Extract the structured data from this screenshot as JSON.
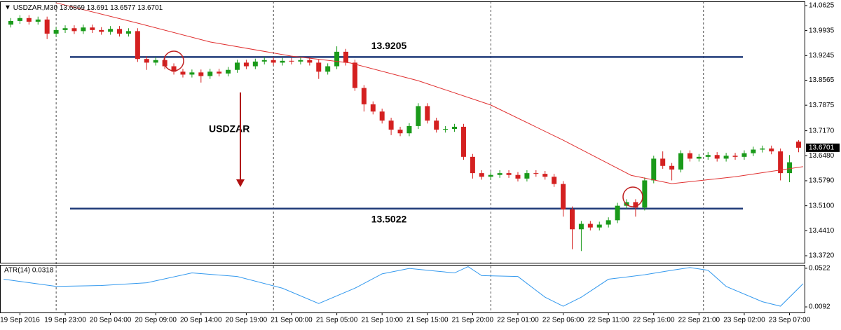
{
  "chart_data": {
    "type": "candlestick",
    "symbol": "USDZAR,M30",
    "annotation": "USDZAR",
    "up_color": "#1a9a1a",
    "down_color": "#d42020",
    "xlim": [
      -7.2,
      81.66
    ],
    "xticks": [
      {
        "value": -5,
        "label": "19 Sep 2016"
      },
      {
        "value": 0,
        "label": "19 Sep 23:00"
      },
      {
        "value": 5,
        "label": "20 Sep 04:00"
      },
      {
        "value": 10,
        "label": "20 Sep 09:00"
      },
      {
        "value": 15,
        "label": "20 Sep 14:00"
      },
      {
        "value": 20,
        "label": "20 Sep 19:00"
      },
      {
        "value": 25,
        "label": "21 Sep 00:00"
      },
      {
        "value": 30,
        "label": "21 Sep 05:00"
      },
      {
        "value": 35,
        "label": "21 Sep 10:00"
      },
      {
        "value": 40,
        "label": "21 Sep 15:00"
      },
      {
        "value": 45,
        "label": "21 Sep 20:00"
      },
      {
        "value": 50,
        "label": "22 Sep 01:00"
      },
      {
        "value": 55,
        "label": "22 Sep 06:00"
      },
      {
        "value": 60,
        "label": "22 Sep 11:00"
      },
      {
        "value": 65,
        "label": "22 Sep 16:00"
      },
      {
        "value": 70,
        "label": "22 Sep 21:00"
      },
      {
        "value": 75,
        "label": "23 Sep 02:00"
      },
      {
        "value": 80,
        "label": "23 Sep 07:00"
      }
    ],
    "separators": [
      -1,
      23,
      47,
      70.5
    ],
    "ylim": [
      13.3527,
      14.074
    ],
    "yticks": [
      14.0625,
      13.9935,
      13.9245,
      13.8565,
      13.7875,
      {
        "value": 13.717,
        "label": "13.7170"
      },
      {
        "value": 13.648,
        "label": "13.6480"
      },
      {
        "value": 13.579,
        "label": "13.5790"
      },
      {
        "value": 13.51,
        "label": "13.5100"
      },
      {
        "value": 13.441,
        "label": "13.4410"
      },
      {
        "value": 13.372,
        "label": "13.3720"
      }
    ],
    "x": [
      -6,
      -5,
      -4,
      -3,
      -2,
      -1,
      0,
      1,
      2,
      3,
      4,
      5,
      6,
      7,
      8,
      9,
      10,
      11,
      12,
      13,
      14,
      15,
      16,
      17,
      18,
      19,
      20,
      21,
      22,
      23,
      24,
      25,
      26,
      27,
      28,
      29,
      30,
      31,
      32,
      33,
      34,
      35,
      36,
      37,
      38,
      39,
      40,
      41,
      42,
      43,
      44,
      45,
      46,
      47,
      48,
      49,
      50,
      51,
      52,
      53,
      54,
      55,
      56,
      57,
      58,
      59,
      60,
      61,
      62,
      63,
      64,
      65,
      66,
      67,
      68,
      69,
      70,
      71,
      72,
      73,
      74,
      75,
      76,
      77,
      78,
      79,
      80,
      81
    ],
    "open": [
      14.01,
      14.02,
      14.028,
      14.018,
      14.024,
      13.985,
      13.995,
      14.0,
      13.992,
      14.002,
      13.995,
      13.99,
      13.998,
      13.985,
      13.992,
      13.915,
      13.905,
      13.912,
      13.895,
      13.88,
      13.872,
      13.878,
      13.868,
      13.88,
      13.875,
      13.885,
      13.905,
      13.895,
      13.908,
      13.912,
      13.905,
      13.91,
      13.908,
      13.912,
      13.905,
      13.88,
      13.895,
      13.935,
      13.905,
      13.835,
      13.79,
      13.77,
      13.745,
      13.72,
      13.71,
      13.73,
      13.785,
      13.745,
      13.72,
      13.722,
      13.728,
      13.645,
      13.6,
      13.59,
      13.595,
      13.6,
      13.595,
      13.585,
      13.6,
      13.598,
      13.59,
      13.57,
      13.5,
      13.445,
      13.46,
      13.45,
      13.458,
      13.47,
      13.51,
      13.52,
      13.505,
      13.58,
      13.64,
      13.62,
      13.61,
      13.655,
      13.64,
      13.645,
      13.65,
      13.64,
      13.648,
      13.645,
      13.655,
      13.665,
      13.668,
      13.66,
      13.6,
      13.6869
    ],
    "high": [
      14.028,
      14.036,
      14.036,
      14.032,
      14.032,
      14.003,
      14.008,
      14.008,
      14.01,
      14.01,
      14.003,
      14.006,
      14.006,
      14.0,
      14.0,
      13.923,
      13.92,
      13.92,
      13.903,
      13.888,
      13.886,
      13.886,
      13.888,
      13.888,
      13.893,
      13.913,
      13.913,
      13.916,
      13.92,
      13.92,
      13.918,
      13.918,
      13.92,
      13.92,
      13.913,
      13.903,
      13.95,
      13.943,
      13.913,
      13.843,
      13.798,
      13.778,
      13.753,
      13.728,
      13.738,
      13.793,
      13.793,
      13.753,
      13.73,
      13.736,
      13.736,
      13.653,
      13.608,
      13.603,
      13.608,
      13.608,
      13.603,
      13.608,
      13.608,
      13.606,
      13.598,
      13.578,
      13.508,
      13.468,
      13.468,
      13.466,
      13.478,
      13.518,
      13.528,
      13.528,
      13.588,
      13.648,
      13.66,
      13.628,
      13.663,
      13.663,
      13.653,
      13.658,
      13.658,
      13.656,
      13.656,
      13.663,
      13.673,
      13.676,
      13.676,
      13.668,
      13.65,
      13.691
    ],
    "low": [
      14.002,
      14.012,
      14.01,
      14.01,
      13.97,
      13.977,
      13.987,
      13.984,
      13.984,
      13.987,
      13.982,
      13.982,
      13.977,
      13.977,
      13.907,
      13.885,
      13.897,
      13.887,
      13.872,
      13.864,
      13.864,
      13.85,
      13.86,
      13.867,
      13.867,
      13.877,
      13.887,
      13.887,
      13.9,
      13.897,
      13.897,
      13.9,
      13.9,
      13.897,
      13.86,
      13.872,
      13.887,
      13.897,
      13.827,
      13.77,
      13.762,
      13.737,
      13.705,
      13.702,
      13.702,
      13.722,
      13.737,
      13.712,
      13.712,
      13.714,
      13.637,
      13.585,
      13.582,
      13.582,
      13.587,
      13.587,
      13.577,
      13.577,
      13.59,
      13.582,
      13.562,
      13.48,
      13.39,
      13.385,
      13.442,
      13.442,
      13.45,
      13.462,
      13.502,
      13.48,
      13.497,
      13.572,
      13.612,
      13.58,
      13.602,
      13.632,
      13.632,
      13.637,
      13.632,
      13.632,
      13.637,
      13.637,
      13.647,
      13.657,
      13.652,
      13.58,
      13.575,
      13.6577
    ],
    "close": [
      14.02,
      14.028,
      14.018,
      14.024,
      13.985,
      13.995,
      14.0,
      13.992,
      14.002,
      13.995,
      13.99,
      13.998,
      13.985,
      13.992,
      13.915,
      13.905,
      13.912,
      13.895,
      13.88,
      13.872,
      13.878,
      13.868,
      13.88,
      13.875,
      13.885,
      13.905,
      13.895,
      13.908,
      13.912,
      13.905,
      13.91,
      13.908,
      13.912,
      13.905,
      13.88,
      13.895,
      13.935,
      13.905,
      13.835,
      13.79,
      13.77,
      13.745,
      13.72,
      13.71,
      13.73,
      13.785,
      13.745,
      13.72,
      13.722,
      13.728,
      13.645,
      13.6,
      13.59,
      13.595,
      13.6,
      13.595,
      13.585,
      13.6,
      13.598,
      13.59,
      13.57,
      13.5,
      13.445,
      13.46,
      13.45,
      13.458,
      13.47,
      13.51,
      13.52,
      13.505,
      13.58,
      13.64,
      13.62,
      13.61,
      13.655,
      13.64,
      13.645,
      13.65,
      13.64,
      13.648,
      13.645,
      13.655,
      13.665,
      13.668,
      13.66,
      13.6,
      13.63,
      13.6701
    ],
    "ma": {
      "color": "#e03030",
      "x": [
        -1,
        8,
        16,
        25,
        31.5,
        39,
        47,
        55,
        62.5,
        67,
        74,
        81.5
      ],
      "values": [
        14.07,
        14.014,
        13.962,
        13.923,
        13.904,
        13.855,
        13.788,
        13.691,
        13.594,
        13.571,
        13.59,
        13.618
      ]
    },
    "levels": [
      {
        "value": 13.9205,
        "color": "#1f3a78"
      },
      {
        "value": 13.5022,
        "color": "#1f3a78"
      }
    ],
    "indicator": {
      "label": "ATR(14) 0.0318",
      "color": "#3399ee",
      "y2lim": [
        0.003,
        0.056
      ],
      "y2ticks": [
        0.0522,
        0.0092
      ],
      "x": [
        -6.8,
        -1,
        4,
        9,
        14,
        19,
        24,
        28,
        32,
        35,
        38,
        41,
        43,
        44.5,
        46,
        50,
        53,
        55,
        57,
        60,
        64,
        67,
        69,
        71,
        73,
        77,
        79,
        81.5
      ],
      "values": [
        0.04,
        0.032,
        0.033,
        0.036,
        0.047,
        0.043,
        0.03,
        0.013,
        0.03,
        0.046,
        0.052,
        0.049,
        0.047,
        0.054,
        0.044,
        0.043,
        0.02,
        0.01,
        0.02,
        0.04,
        0.045,
        0.05,
        0.053,
        0.05,
        0.032,
        0.015,
        0.01,
        0.035
      ]
    }
  }
}
